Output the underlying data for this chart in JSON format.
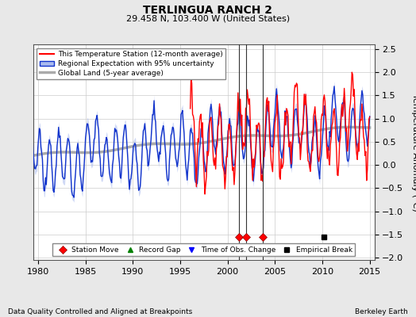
{
  "title": "TERLINGUA RANCH 2",
  "subtitle": "29.458 N, 103.400 W (United States)",
  "ylabel": "Temperature Anomaly (°C)",
  "xlabel_left": "Data Quality Controlled and Aligned at Breakpoints",
  "xlabel_right": "Berkeley Earth",
  "xlim": [
    1979.5,
    2015.5
  ],
  "ylim": [
    -2.05,
    2.6
  ],
  "yticks": [
    -2,
    -1.5,
    -1,
    -0.5,
    0,
    0.5,
    1,
    1.5,
    2,
    2.5
  ],
  "xticks": [
    1980,
    1985,
    1990,
    1995,
    2000,
    2005,
    2010,
    2015
  ],
  "bg_color": "#e8e8e8",
  "plot_bg_color": "#ffffff",
  "station_move_years": [
    2001.2,
    2002.0,
    2003.7
  ],
  "tobs_change_years": [],
  "empirical_break_years": [
    2010.2
  ],
  "vline_years": [
    2001.2,
    2002.0,
    2003.7
  ],
  "marker_y": -1.55
}
